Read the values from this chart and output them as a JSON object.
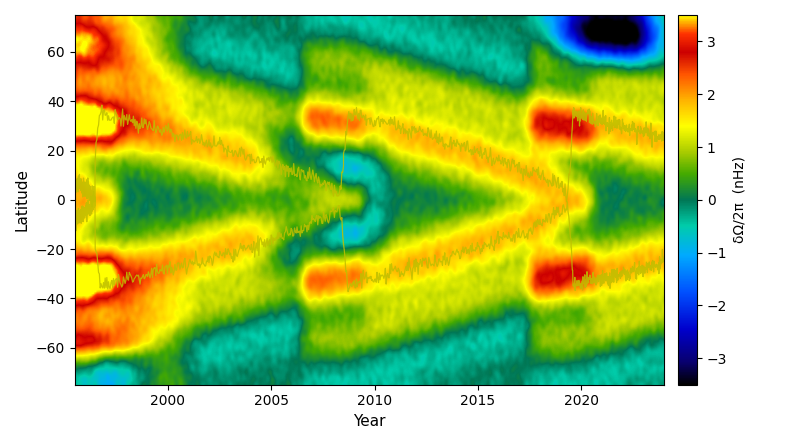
{
  "title": "",
  "xlabel": "Year",
  "ylabel": "Latitude",
  "colorbar_label": "δΩ/2π  (nHz)",
  "vmin": -3.5,
  "vmax": 3.5,
  "year_start": 1995.5,
  "year_end": 2024.0,
  "lat_min": -75,
  "lat_max": 75,
  "xticks": [
    2000,
    2005,
    2010,
    2015,
    2020
  ],
  "yticks": [
    -60,
    -40,
    -20,
    0,
    20,
    40,
    60
  ],
  "figsize": [
    8.0,
    4.44
  ],
  "dpi": 100
}
